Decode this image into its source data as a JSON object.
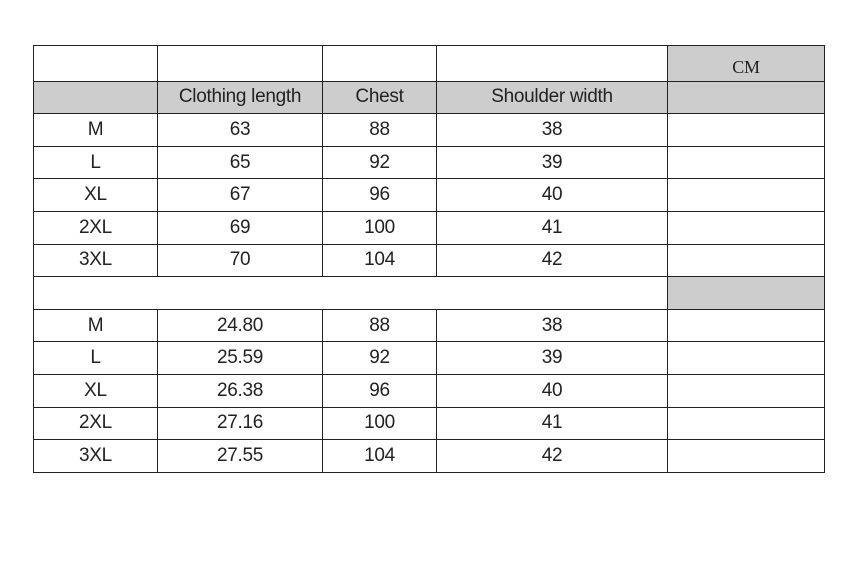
{
  "unit_label": "CM",
  "headers": [
    "",
    "Clothing length",
    "Chest",
    "Shoulder width",
    ""
  ],
  "section1": [
    [
      "M",
      "63",
      "88",
      "38"
    ],
    [
      "L",
      "65",
      "92",
      "39"
    ],
    [
      "XL",
      "67",
      "96",
      "40"
    ],
    [
      "2XL",
      "69",
      "100",
      "41"
    ],
    [
      "3XL",
      "70",
      "104",
      "42"
    ]
  ],
  "section2": [
    [
      "M",
      "24.80",
      "88",
      "38"
    ],
    [
      "L",
      "25.59",
      "92",
      "39"
    ],
    [
      "XL",
      "26.38",
      "96",
      "40"
    ],
    [
      "2XL",
      "27.16",
      "100",
      "41"
    ],
    [
      "3XL",
      "27.55",
      "104",
      "42"
    ]
  ],
  "colors": {
    "header_gray": "#cdcdcd",
    "border": "#222222"
  }
}
